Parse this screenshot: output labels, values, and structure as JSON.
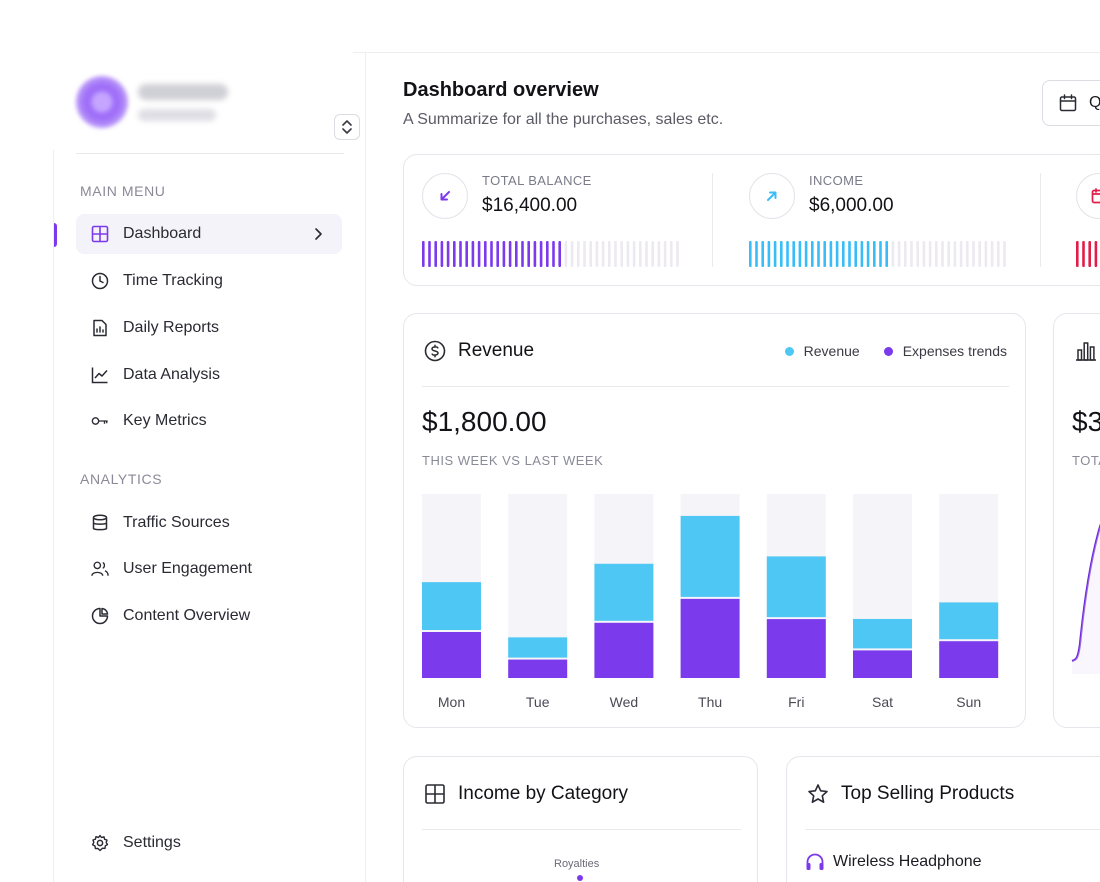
{
  "sidebar": {
    "main_menu_title": "MAIN MENU",
    "analytics_title": "ANALYTICS",
    "main_items": [
      {
        "label": "Dashboard",
        "icon": "grid-icon"
      },
      {
        "label": "Time Tracking",
        "icon": "clock-icon"
      },
      {
        "label": "Daily Reports",
        "icon": "report-icon"
      },
      {
        "label": "Data Analysis",
        "icon": "line-chart-icon"
      },
      {
        "label": "Key Metrics",
        "icon": "key-icon"
      }
    ],
    "analytics_items": [
      {
        "label": "Traffic Sources",
        "icon": "database-icon"
      },
      {
        "label": "User Engagement",
        "icon": "users-icon"
      },
      {
        "label": "Content Overview",
        "icon": "pie-chart-icon"
      }
    ],
    "settings_label": "Settings"
  },
  "header": {
    "title": "Dashboard overview",
    "subtitle": "A Summarize for all the purchases, sales etc.",
    "date_button_label": "Q"
  },
  "stats": [
    {
      "label": "TOTAL BALANCE",
      "value": "$16,400.00",
      "color": "#7c3aed",
      "progress": 0.55,
      "icon": "arrow-down-left-icon"
    },
    {
      "label": "INCOME",
      "value": "$6,000.00",
      "color": "#38bdf8",
      "progress": 0.55,
      "icon": "arrow-up-right-icon"
    },
    {
      "label": "",
      "value": "",
      "color": "#e11d48",
      "progress": 0.55,
      "icon": "calendar-x-icon"
    }
  ],
  "revenue": {
    "title": "Revenue",
    "value": "$1,800.00",
    "caption": "THIS WEEK VS LAST WEEK",
    "legend": [
      {
        "label": "Revenue",
        "color": "#4fc7f5"
      },
      {
        "label": "Expenses trends",
        "color": "#7c3aed"
      }
    ]
  },
  "chart_data": {
    "type": "bar",
    "stacked": true,
    "categories": [
      "Mon",
      "Tue",
      "Wed",
      "Thu",
      "Fri",
      "Sat",
      "Sun"
    ],
    "series": [
      {
        "name": "Expenses trends",
        "values": [
          25,
          10,
          30,
          43,
          32,
          15,
          20
        ]
      },
      {
        "name": "Revenue",
        "values": [
          26,
          11,
          31,
          44,
          33,
          16,
          20
        ]
      }
    ],
    "ylim": [
      0,
      100
    ]
  },
  "side_card": {
    "value": "$3",
    "caption": "TOTA"
  },
  "income_category": {
    "title": "Income by Category",
    "slice_label": "Royalties"
  },
  "top_products": {
    "title": "Top Selling Products",
    "items": [
      "Wireless Headphone"
    ]
  }
}
